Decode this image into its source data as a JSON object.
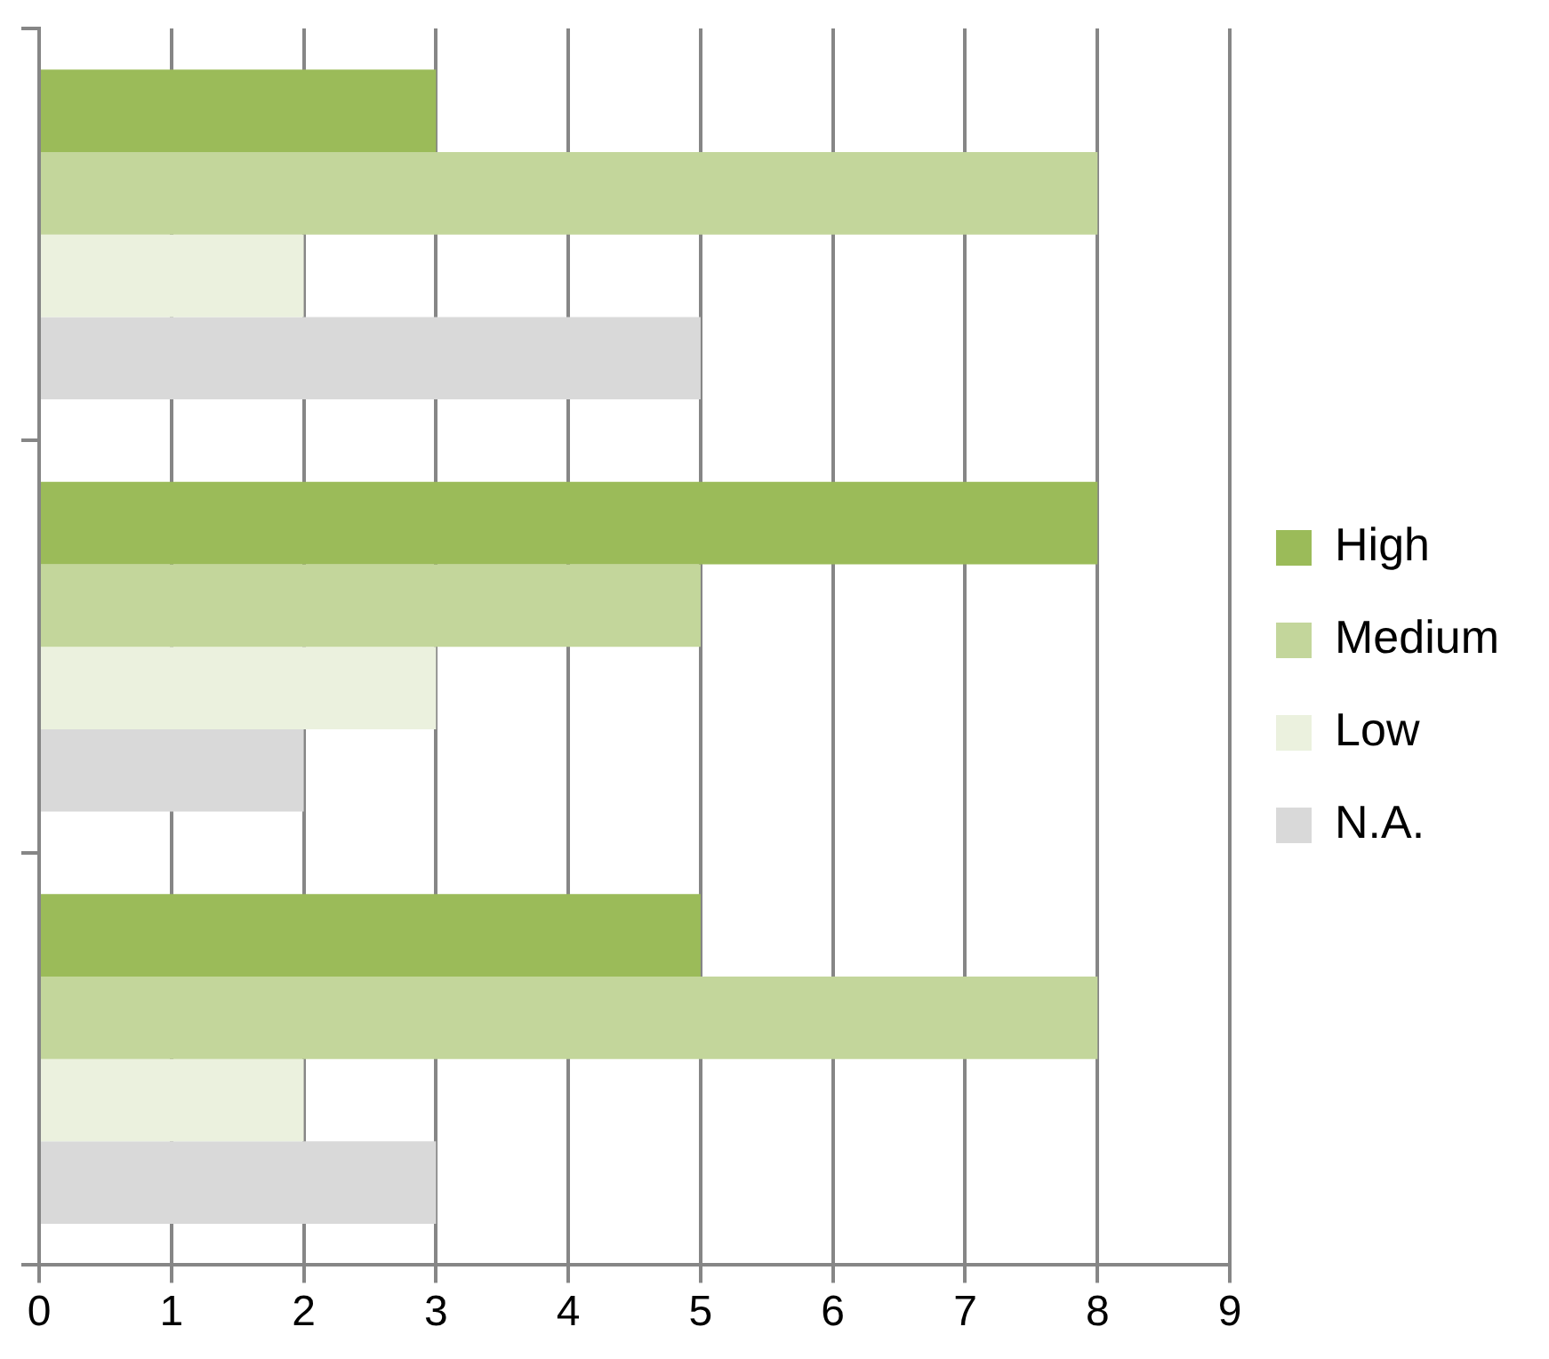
{
  "chart_data": {
    "type": "bar",
    "orientation": "horizontal",
    "categories": [
      null,
      null,
      null
    ],
    "series": [
      {
        "name": "High",
        "color": "#9bbb59",
        "values": [
          3,
          8,
          5
        ]
      },
      {
        "name": "Medium",
        "color": "#c3d69b",
        "values": [
          8,
          5,
          8
        ]
      },
      {
        "name": "Low",
        "color": "#ebf1de",
        "values": [
          2,
          3,
          2
        ]
      },
      {
        "name": "N.A.",
        "color": "#d9d9d9",
        "values": [
          5,
          2,
          3
        ]
      }
    ],
    "xlim": [
      0,
      9
    ],
    "xticks": [
      0,
      1,
      2,
      3,
      4,
      5,
      6,
      7,
      8,
      9
    ],
    "grid": "x",
    "legend": "right",
    "tick_labels": "x"
  }
}
